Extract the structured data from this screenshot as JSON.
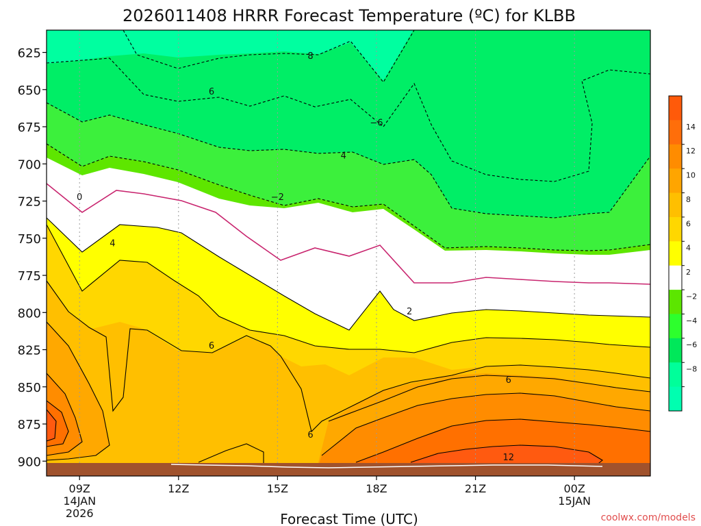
{
  "chart_data": {
    "type": "heatmap",
    "title": "2026011408 HRRR Forecast Temperature (ºC) for KLBB",
    "xlabel": "Forecast Time (UTC)",
    "ylabel": "",
    "y_axis": "pressure (hPa), inverted",
    "ylim": [
      910,
      610
    ],
    "y_ticks": [
      625,
      650,
      675,
      700,
      725,
      750,
      775,
      800,
      825,
      850,
      875,
      900
    ],
    "xlim": [
      8,
      26.3
    ],
    "x_ticks": [
      {
        "x": 9,
        "label": "09Z",
        "sub1": "14JAN",
        "sub2": "2026"
      },
      {
        "x": 12,
        "label": "12Z",
        "sub1": "",
        "sub2": ""
      },
      {
        "x": 15,
        "label": "15Z",
        "sub1": "",
        "sub2": ""
      },
      {
        "x": 18,
        "label": "18Z",
        "sub1": "",
        "sub2": ""
      },
      {
        "x": 21,
        "label": "21Z",
        "sub1": "",
        "sub2": ""
      },
      {
        "x": 24,
        "label": "00Z",
        "sub1": "15JAN",
        "sub2": ""
      }
    ],
    "grid": true,
    "surface_color": "#a0522d",
    "surface_level_hpa": 906,
    "colorbar": {
      "position": "right",
      "levels": [
        {
          "label": "",
          "color": "#ff5a0a"
        },
        {
          "label": "14",
          "color": "#ff6e0a"
        },
        {
          "label": "12",
          "color": "#ff8c00"
        },
        {
          "label": "10",
          "color": "#ffa500"
        },
        {
          "label": "8",
          "color": "#ffbf00"
        },
        {
          "label": "6",
          "color": "#ffd700"
        },
        {
          "label": "4",
          "color": "#ffff00"
        },
        {
          "label": "2",
          "color": "#ffffff"
        },
        {
          "label": "−2",
          "color": "#5ce600"
        },
        {
          "label": "−4",
          "color": "#2dff2d"
        },
        {
          "label": "−6",
          "color": "#00e85a"
        },
        {
          "label": "−8",
          "color": "#00ff9a"
        },
        {
          "label": "",
          "color": "#00ffb0"
        }
      ]
    },
    "contour_labels": [
      {
        "x": 9.0,
        "p": 722,
        "text": "0"
      },
      {
        "x": 10.0,
        "p": 753,
        "text": "4"
      },
      {
        "x": 13.0,
        "p": 822,
        "text": "6"
      },
      {
        "x": 16.0,
        "p": 882,
        "text": "6"
      },
      {
        "x": 19.0,
        "p": 799,
        "text": "2"
      },
      {
        "x": 15.0,
        "p": 722,
        "text": "−2"
      },
      {
        "x": 18.0,
        "p": 672,
        "text": "−6"
      },
      {
        "x": 17.0,
        "p": 694,
        "text": "4"
      },
      {
        "x": 13.0,
        "p": 651,
        "text": "6"
      },
      {
        "x": 16.0,
        "p": 627,
        "text": "8"
      },
      {
        "x": 22.0,
        "p": 845,
        "text": "6"
      },
      {
        "x": 22.0,
        "p": 897,
        "text": "12"
      }
    ]
  },
  "footer": {
    "credit": "coolwx.com/models"
  }
}
